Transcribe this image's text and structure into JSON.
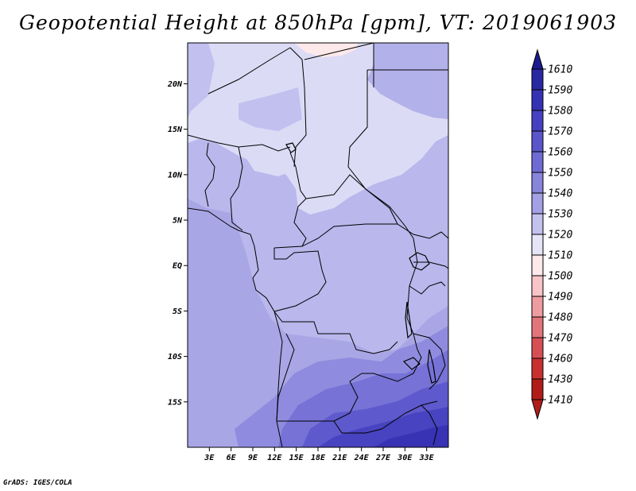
{
  "title": "Geopotential Height at 850hPa [gpm], VT: 2019061903",
  "footer": "GrADS: IGES/COLA",
  "map": {
    "lon_range": [
      0,
      36
    ],
    "lat_range": [
      -20,
      24.5
    ],
    "lat_ticks": [
      {
        "value": 20,
        "label": "20N"
      },
      {
        "value": 15,
        "label": "15N"
      },
      {
        "value": 10,
        "label": "10N"
      },
      {
        "value": 5,
        "label": "5N"
      },
      {
        "value": 0,
        "label": "EQ"
      },
      {
        "value": -5,
        "label": "5S"
      },
      {
        "value": -10,
        "label": "10S"
      },
      {
        "value": -15,
        "label": "15S"
      }
    ],
    "lon_ticks": [
      {
        "value": 3,
        "label": "3E"
      },
      {
        "value": 6,
        "label": "6E"
      },
      {
        "value": 9,
        "label": "9E"
      },
      {
        "value": 12,
        "label": "12E"
      },
      {
        "value": 15,
        "label": "15E"
      },
      {
        "value": 18,
        "label": "18E"
      },
      {
        "value": 21,
        "label": "21E"
      },
      {
        "value": 24,
        "label": "24E"
      },
      {
        "value": 27,
        "label": "27E"
      },
      {
        "value": 30,
        "label": "30E"
      },
      {
        "value": 33,
        "label": "33E"
      }
    ]
  },
  "colorbar": {
    "levels": [
      "1610",
      "1590",
      "1580",
      "1570",
      "1560",
      "1550",
      "1540",
      "1530",
      "1520",
      "1510",
      "1500",
      "1490",
      "1480",
      "1470",
      "1460",
      "1430",
      "1410"
    ],
    "colors": [
      "#1c1a8c",
      "#2a27a3",
      "#3632b4",
      "#4641c0",
      "#5a55cb",
      "#6f6bd4",
      "#8784dc",
      "#a3a0e5",
      "#c3c1ee",
      "#e6e5f8",
      "#fde8ea",
      "#f8c4c7",
      "#ee9c9f",
      "#e27579",
      "#d65053",
      "#c8302f",
      "#b01c18"
    ]
  },
  "colors": {
    "background": "#ffffff",
    "border": "#000000"
  }
}
